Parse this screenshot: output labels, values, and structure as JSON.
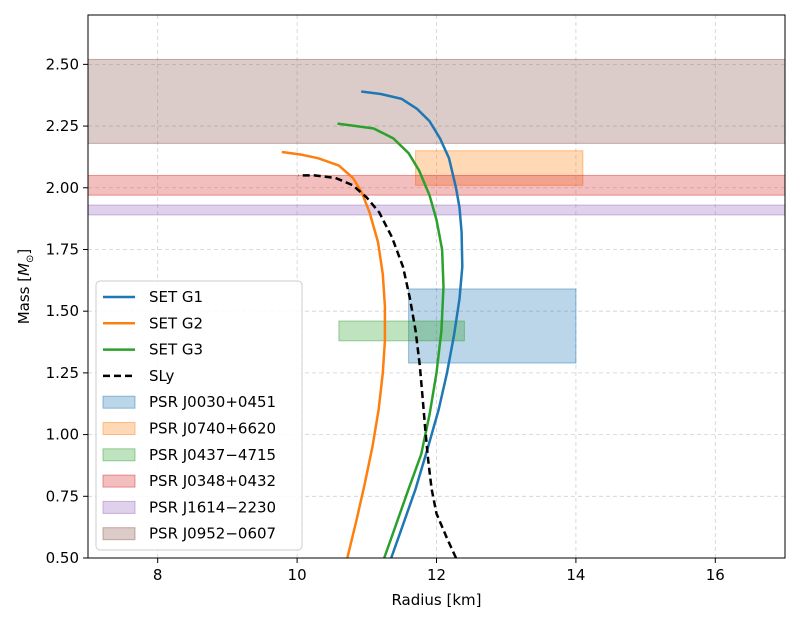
{
  "chart_data": {
    "type": "line",
    "title": "",
    "xlabel": "Radius [km]",
    "ylabel": "Mass [M⊙]",
    "ylabel_base": "Mass [",
    "ylabel_symbol": "M",
    "ylabel_subscript": "⊙",
    "ylabel_close": "]",
    "xlim": [
      7,
      17
    ],
    "ylim": [
      0.5,
      2.7
    ],
    "xticks": [
      8,
      10,
      12,
      14,
      16
    ],
    "yticks": [
      0.5,
      0.75,
      1.0,
      1.25,
      1.5,
      1.75,
      2.0,
      2.25,
      2.5
    ],
    "xtick_labels": [
      "8",
      "10",
      "12",
      "14",
      "16"
    ],
    "ytick_labels": [
      "0.50",
      "0.75",
      "1.00",
      "1.25",
      "1.50",
      "1.75",
      "2.00",
      "2.25",
      "2.50"
    ],
    "grid": true,
    "legend_position": "lower-left",
    "series": [
      {
        "name": "SET G1",
        "color": "#1f77b4",
        "style": "solid",
        "points": [
          [
            11.35,
            0.5
          ],
          [
            11.5,
            0.62
          ],
          [
            11.7,
            0.78
          ],
          [
            11.88,
            0.95
          ],
          [
            12.03,
            1.1
          ],
          [
            12.15,
            1.25
          ],
          [
            12.25,
            1.4
          ],
          [
            12.33,
            1.55
          ],
          [
            12.37,
            1.68
          ],
          [
            12.36,
            1.82
          ],
          [
            12.33,
            1.92
          ],
          [
            12.28,
            2.0
          ],
          [
            12.18,
            2.12
          ],
          [
            12.05,
            2.2
          ],
          [
            11.9,
            2.27
          ],
          [
            11.72,
            2.32
          ],
          [
            11.5,
            2.36
          ],
          [
            11.2,
            2.38
          ],
          [
            10.92,
            2.39
          ]
        ]
      },
      {
        "name": "SET G2",
        "color": "#ff7f0e",
        "style": "solid",
        "points": [
          [
            10.72,
            0.5
          ],
          [
            10.85,
            0.65
          ],
          [
            10.97,
            0.8
          ],
          [
            11.08,
            0.95
          ],
          [
            11.17,
            1.1
          ],
          [
            11.23,
            1.25
          ],
          [
            11.26,
            1.38
          ],
          [
            11.26,
            1.52
          ],
          [
            11.23,
            1.65
          ],
          [
            11.16,
            1.78
          ],
          [
            11.04,
            1.9
          ],
          [
            10.93,
            1.98
          ],
          [
            10.8,
            2.04
          ],
          [
            10.6,
            2.09
          ],
          [
            10.3,
            2.12
          ],
          [
            10.05,
            2.135
          ],
          [
            9.78,
            2.145
          ]
        ]
      },
      {
        "name": "SET G3",
        "color": "#2ca02c",
        "style": "solid",
        "points": [
          [
            11.25,
            0.5
          ],
          [
            11.4,
            0.62
          ],
          [
            11.6,
            0.78
          ],
          [
            11.78,
            0.92
          ],
          [
            11.9,
            1.08
          ],
          [
            12.0,
            1.25
          ],
          [
            12.07,
            1.42
          ],
          [
            12.1,
            1.6
          ],
          [
            12.08,
            1.75
          ],
          [
            12.0,
            1.87
          ],
          [
            11.9,
            1.97
          ],
          [
            11.75,
            2.07
          ],
          [
            11.6,
            2.14
          ],
          [
            11.38,
            2.2
          ],
          [
            11.1,
            2.24
          ],
          [
            10.85,
            2.25
          ],
          [
            10.58,
            2.26
          ]
        ]
      },
      {
        "name": "SLy",
        "color": "#000000",
        "style": "dashed",
        "points": [
          [
            12.28,
            0.5
          ],
          [
            12.15,
            0.58
          ],
          [
            12.0,
            0.68
          ],
          [
            11.93,
            0.78
          ],
          [
            11.88,
            0.9
          ],
          [
            11.84,
            1.02
          ],
          [
            11.8,
            1.15
          ],
          [
            11.76,
            1.28
          ],
          [
            11.7,
            1.42
          ],
          [
            11.62,
            1.55
          ],
          [
            11.52,
            1.68
          ],
          [
            11.36,
            1.8
          ],
          [
            11.18,
            1.9
          ],
          [
            11.0,
            1.96
          ],
          [
            10.8,
            2.01
          ],
          [
            10.55,
            2.04
          ],
          [
            10.25,
            2.05
          ],
          [
            10.02,
            2.05
          ]
        ]
      }
    ],
    "bands": [
      {
        "name": "PSR J0030+0451",
        "color": "#1f77b4",
        "x": [
          11.6,
          14.0
        ],
        "y": [
          1.29,
          1.59
        ],
        "opacity": 0.3
      },
      {
        "name": "PSR J0740+6620",
        "color": "#ff7f0e",
        "x": [
          11.7,
          14.1
        ],
        "y": [
          2.01,
          2.15
        ],
        "opacity": 0.3
      },
      {
        "name": "PSR J0437−4715",
        "color": "#2ca02c",
        "x": [
          10.6,
          12.4
        ],
        "y": [
          1.38,
          1.46
        ],
        "opacity": 0.3
      },
      {
        "name": "PSR J0348+0432",
        "color": "#d62728",
        "x": [
          7,
          17
        ],
        "y": [
          1.97,
          2.05
        ],
        "opacity": 0.3
      },
      {
        "name": "PSR J1614−2230",
        "color": "#9467bd",
        "x": [
          7,
          17
        ],
        "y": [
          1.89,
          1.93
        ],
        "opacity": 0.3
      },
      {
        "name": "PSR J0952−0607",
        "color": "#8c564b",
        "x": [
          7,
          17
        ],
        "y": [
          2.18,
          2.52
        ],
        "opacity": 0.3
      }
    ]
  }
}
